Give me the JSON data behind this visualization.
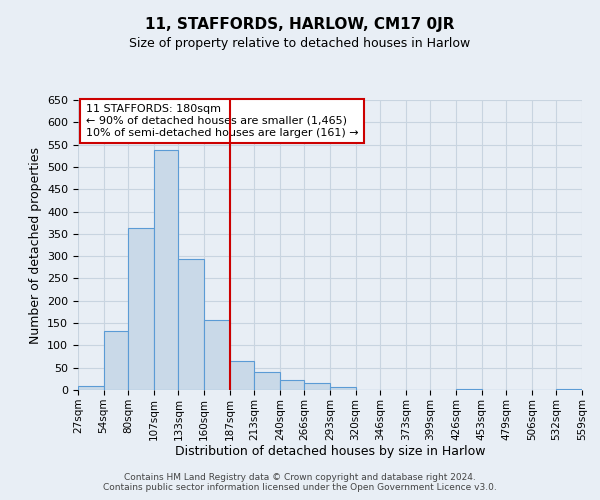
{
  "title": "11, STAFFORDS, HARLOW, CM17 0JR",
  "subtitle": "Size of property relative to detached houses in Harlow",
  "xlabel": "Distribution of detached houses by size in Harlow",
  "ylabel": "Number of detached properties",
  "footer_line1": "Contains HM Land Registry data © Crown copyright and database right 2024.",
  "footer_line2": "Contains public sector information licensed under the Open Government Licence v3.0.",
  "annotation_line1": "11 STAFFORDS: 180sqm",
  "annotation_line2": "← 90% of detached houses are smaller (1,465)",
  "annotation_line3": "10% of semi-detached houses are larger (161) →",
  "bar_edges": [
    27,
    54,
    80,
    107,
    133,
    160,
    187,
    213,
    240,
    266,
    293,
    320,
    346,
    373,
    399,
    426,
    453,
    479,
    506,
    532,
    559
  ],
  "bar_values": [
    10,
    133,
    363,
    537,
    293,
    157,
    65,
    40,
    22,
    15,
    7,
    0,
    0,
    0,
    0,
    2,
    0,
    0,
    0,
    2
  ],
  "tick_labels": [
    "27sqm",
    "54sqm",
    "80sqm",
    "107sqm",
    "133sqm",
    "160sqm",
    "187sqm",
    "213sqm",
    "240sqm",
    "266sqm",
    "293sqm",
    "320sqm",
    "346sqm",
    "373sqm",
    "399sqm",
    "426sqm",
    "453sqm",
    "479sqm",
    "506sqm",
    "532sqm",
    "559sqm"
  ],
  "bar_facecolor": "#c9d9e8",
  "bar_edgecolor": "#5b9bd5",
  "vline_x": 187,
  "vline_color": "#cc0000",
  "annotation_box_edgecolor": "#cc0000",
  "grid_color": "#c8d4e0",
  "background_color": "#e8eef5",
  "ylim": [
    0,
    650
  ],
  "yticks": [
    0,
    50,
    100,
    150,
    200,
    250,
    300,
    350,
    400,
    450,
    500,
    550,
    600,
    650
  ]
}
